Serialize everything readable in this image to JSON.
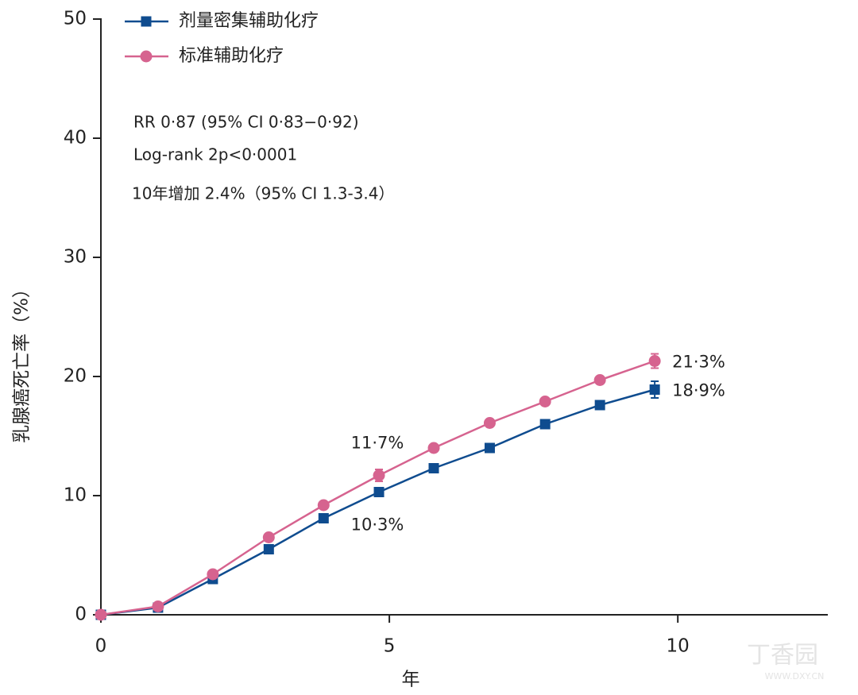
{
  "chart_data": {
    "type": "line",
    "x_label": "年",
    "y_label": "乳腺癌死亡率（%）",
    "annotations": [
      "RR 0·87 (95% CI 0·83−0·92)",
      "Log-rank 2p<0·0001",
      "10年增加 2.4%（95% CI 1.3-3.4）"
    ],
    "watermark": [
      "丁香园",
      "WWW.DXY.CN"
    ],
    "x": [
      0,
      0.99,
      1.94,
      2.91,
      3.86,
      4.82,
      5.77,
      6.74,
      7.7,
      8.65,
      9.6
    ],
    "series": [
      {
        "name": "剂量密集辅助化疗",
        "color": "#0f4c8f",
        "marker": "square",
        "values": [
          0,
          0.6,
          3.0,
          5.5,
          8.1,
          10.3,
          12.3,
          14.0,
          16.0,
          17.6,
          18.9
        ],
        "errors": [
          null,
          null,
          null,
          null,
          null,
          null,
          null,
          null,
          null,
          null,
          0.7
        ],
        "value_labels": [
          null,
          null,
          null,
          null,
          null,
          "10·3%",
          null,
          null,
          null,
          null,
          "18·9%"
        ]
      },
      {
        "name": "标准辅助化疗",
        "color": "#d6638f",
        "marker": "circle",
        "values": [
          0,
          0.7,
          3.4,
          6.5,
          9.2,
          11.7,
          14.0,
          16.1,
          17.9,
          19.7,
          21.3
        ],
        "errors": [
          null,
          null,
          null,
          null,
          null,
          0.5,
          null,
          null,
          null,
          null,
          0.6
        ],
        "value_labels": [
          null,
          null,
          null,
          null,
          null,
          "11·7%",
          null,
          null,
          null,
          null,
          "21·3%"
        ]
      }
    ],
    "xlim": [
      0,
      12.6
    ],
    "xticks": [
      0,
      5,
      10
    ],
    "ylim": [
      0,
      50
    ],
    "yticks": [
      0,
      10,
      20,
      30,
      40,
      50
    ],
    "grid": false,
    "legend": "upper left"
  }
}
